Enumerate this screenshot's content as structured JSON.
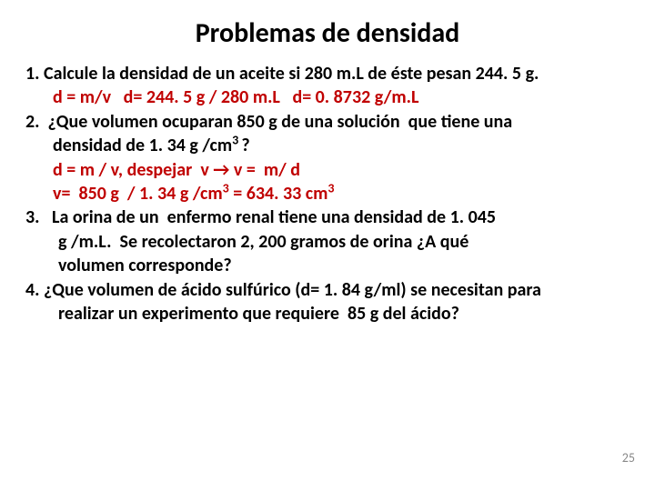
{
  "title": "Problemas de densidad",
  "p1_q": "1. Calcule la densidad de un aceite si 280 m.L de éste pesan 244. 5 g.",
  "p1_a": "d = m/v   d= 244. 5 g / 280 m.L   d= 0. 8732 g/m.L",
  "p2_q_l1": "2.  ¿Que volumen ocuparan 850 g de una solución  que tiene una",
  "p2_q_l2_pre": "densidad de 1. 34 g /cm",
  "p2_q_l2_sup": "3 ",
  "p2_q_l2_post": "?",
  "p2_a_l1": "d = m / v, despejar  v → v =  m/ d",
  "p2_a_l2_pre": "v=  850 g  / 1. 34 g /cm",
  "p2_a_l2_sup1": "3",
  "p2_a_l2_mid": " = 634. 33 cm",
  "p2_a_l2_sup2": "3",
  "p3_l1": "3.   La orina de un  enfermo renal tiene una densidad de 1. 045",
  "p3_l2": "g /m.L.  Se recolectaron 2, 200 gramos de orina ¿A qué",
  "p3_l3": "volumen corresponde?",
  "p4_l1": "4. ¿Que volumen de ácido sulfúrico (d= 1. 84 g/ml) se necesitan para",
  "p4_l2": "realizar un experimento que requiere  85 g del ácido?",
  "page_number": "25",
  "colors": {
    "red": "#c00000",
    "text": "#000000",
    "pagenum": "#888888",
    "bg": "#ffffff"
  }
}
